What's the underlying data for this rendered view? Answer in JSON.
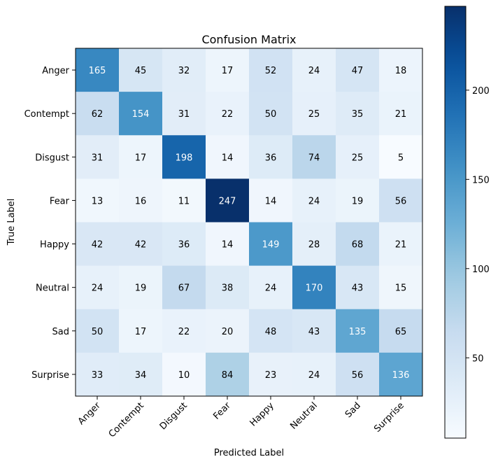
{
  "chart_data": {
    "type": "heatmap",
    "title": "Confusion Matrix",
    "xlabel": "Predicted Label",
    "ylabel": "True Label",
    "x_categories": [
      "Anger",
      "Contempt",
      "Disgust",
      "Fear",
      "Happy",
      "Neutral",
      "Sad",
      "Surprise"
    ],
    "y_categories": [
      "Anger",
      "Contempt",
      "Disgust",
      "Fear",
      "Happy",
      "Neutral",
      "Sad",
      "Surprise"
    ],
    "values": [
      [
        165,
        45,
        32,
        17,
        52,
        24,
        47,
        18
      ],
      [
        62,
        154,
        31,
        22,
        50,
        25,
        35,
        21
      ],
      [
        31,
        17,
        198,
        14,
        36,
        74,
        25,
        5
      ],
      [
        13,
        16,
        11,
        247,
        14,
        24,
        19,
        56
      ],
      [
        42,
        42,
        36,
        14,
        149,
        28,
        68,
        21
      ],
      [
        24,
        19,
        67,
        38,
        24,
        170,
        43,
        15
      ],
      [
        50,
        17,
        22,
        20,
        48,
        43,
        135,
        65
      ],
      [
        33,
        34,
        10,
        84,
        23,
        24,
        56,
        136
      ]
    ],
    "colormap": "Blues",
    "colorbar": {
      "min": 5,
      "max": 247,
      "ticks": [
        50,
        100,
        150,
        200
      ],
      "tick_labels": [
        "50",
        "100",
        "150",
        "200"
      ]
    },
    "grid": false,
    "colorbar_position": "right"
  }
}
